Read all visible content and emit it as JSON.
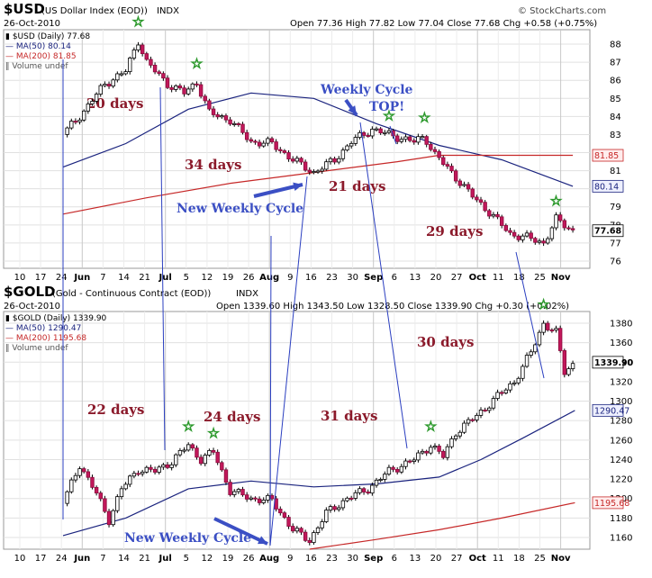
{
  "charts": [
    {
      "id": "usd",
      "symbol": "$USD",
      "name": "(US Dollar Index (EOD))",
      "exchange": "INDX",
      "date": "26-Oct-2010",
      "ohlc": "Open 77.36  High 77.82  Low 77.04  Close 77.68  Chg +0.58 (+0.75%)",
      "chg_label": "Chg",
      "credit": "© StockCharts.com",
      "legend": [
        {
          "text": "$USD (Daily) 77.68",
          "color": "#000000"
        },
        {
          "text": "MA(50) 80.14",
          "color": "#1a237e"
        },
        {
          "text": "MA(200) 81.85",
          "color": "#c62828"
        },
        {
          "text": "Volume undef",
          "color": "#555555"
        }
      ],
      "last_value": "77.68",
      "ma50_value": "80.14",
      "ma200_value": "81.85",
      "annotations": [
        "20 days",
        "34 days",
        "21 days",
        "29 days",
        "New Weekly Cycle",
        "Weekly Cycle",
        "TOP!"
      ]
    },
    {
      "id": "gold",
      "symbol": "$GOLD",
      "name": "(Gold - Continuous Contract (EOD))",
      "exchange": "INDX",
      "date": "26-Oct-2010",
      "ohlc": "Open 1339.60  High 1343.50  Low 1328.50  Close 1339.90  Chg +0.30 (+0.02%)",
      "legend": [
        {
          "text": "$GOLD (Daily) 1339.90",
          "color": "#000000"
        },
        {
          "text": "MA(50) 1290.47",
          "color": "#1a237e"
        },
        {
          "text": "MA(200) 1195.68",
          "color": "#c62828"
        },
        {
          "text": "Volume undef",
          "color": "#555555"
        }
      ],
      "last_value": "1339.90",
      "ma50_value": "1290.47",
      "ma200_value": "1195.68",
      "annotations": [
        "22 days",
        "24 days",
        "31 days",
        "30 days",
        "New Weekly Cycle"
      ]
    }
  ],
  "chart_data": [
    {
      "type": "candlestick",
      "title": "$USD (US Dollar Index (EOD)) INDX",
      "y_ticks": [
        76,
        77,
        78,
        79,
        80,
        81,
        82,
        83,
        84,
        85,
        86,
        87,
        88
      ],
      "ylim": [
        75.6,
        88.8
      ],
      "x_tick_labels": [
        "10",
        "17",
        "24",
        "Jun",
        "7",
        "14",
        "21",
        "Jul",
        "5",
        "12",
        "19",
        "26",
        "Aug",
        "9",
        "16",
        "23",
        "30",
        "Sep",
        "6",
        "13",
        "20",
        "27",
        "Oct",
        "11",
        "18",
        "25",
        "Nov"
      ],
      "x_tick_months": [
        "Jun",
        "Jul",
        "Aug",
        "Sep",
        "Oct",
        "Nov"
      ],
      "grid": true,
      "close_path": [
        {
          "week": 0,
          "value": 83.0
        },
        {
          "week": 1,
          "value": 84.3
        },
        {
          "week": 2,
          "value": 85.8
        },
        {
          "week": 3,
          "value": 86.5
        },
        {
          "week": 3.6,
          "value": 88.2
        },
        {
          "week": 4,
          "value": 87.0
        },
        {
          "week": 5,
          "value": 85.8
        },
        {
          "week": 5.8,
          "value": 85.3
        },
        {
          "week": 6.4,
          "value": 85.9
        },
        {
          "week": 7,
          "value": 84.2
        },
        {
          "week": 8,
          "value": 83.8
        },
        {
          "week": 9,
          "value": 82.6
        },
        {
          "week": 10,
          "value": 82.5
        },
        {
          "week": 11,
          "value": 81.6
        },
        {
          "week": 12,
          "value": 80.9
        },
        {
          "week": 13,
          "value": 81.6
        },
        {
          "week": 13.8,
          "value": 82.6
        },
        {
          "week": 14.8,
          "value": 83.3
        },
        {
          "week": 15.6,
          "value": 83.0
        },
        {
          "week": 16.8,
          "value": 82.6
        },
        {
          "week": 17.3,
          "value": 82.9
        },
        {
          "week": 17.8,
          "value": 81.9
        },
        {
          "week": 18.6,
          "value": 80.9
        },
        {
          "week": 19.5,
          "value": 79.7
        },
        {
          "week": 20.5,
          "value": 78.6
        },
        {
          "week": 21.4,
          "value": 77.5
        },
        {
          "week": 22.2,
          "value": 77.3
        },
        {
          "week": 23,
          "value": 77.0
        },
        {
          "week": 23.6,
          "value": 78.3
        },
        {
          "week": 24.4,
          "value": 77.68
        }
      ],
      "series": [
        {
          "name": "MA(50)",
          "color": "#1a237e",
          "points": [
            {
              "week": 0,
              "value": 81.2
            },
            {
              "week": 3,
              "value": 82.5
            },
            {
              "week": 6,
              "value": 84.4
            },
            {
              "week": 9,
              "value": 85.3
            },
            {
              "week": 12,
              "value": 85.0
            },
            {
              "week": 15,
              "value": 83.6
            },
            {
              "week": 18,
              "value": 82.4
            },
            {
              "week": 21,
              "value": 81.6
            },
            {
              "week": 24.4,
              "value": 80.14
            }
          ]
        },
        {
          "name": "MA(200)",
          "color": "#c62828",
          "points": [
            {
              "week": 0,
              "value": 78.6
            },
            {
              "week": 4,
              "value": 79.5
            },
            {
              "week": 8,
              "value": 80.3
            },
            {
              "week": 12,
              "value": 80.9
            },
            {
              "week": 16,
              "value": 81.5
            },
            {
              "week": 18,
              "value": 81.85
            },
            {
              "week": 24.4,
              "value": 81.85
            }
          ]
        }
      ],
      "cycle_stars": [
        3.6,
        6.4,
        15.6,
        17.3,
        23.6
      ]
    },
    {
      "type": "candlestick",
      "title": "$GOLD (Gold - Continuous Contract (EOD)) INDX",
      "y_ticks": [
        1160,
        1180,
        1200,
        1220,
        1240,
        1260,
        1280,
        1300,
        1320,
        1340,
        1360,
        1380
      ],
      "ylim": [
        1148,
        1392
      ],
      "x_tick_labels": [
        "10",
        "17",
        "24",
        "Jun",
        "7",
        "14",
        "21",
        "Jul",
        "5",
        "12",
        "19",
        "26",
        "Aug",
        "9",
        "16",
        "23",
        "30",
        "Sep",
        "6",
        "13",
        "20",
        "27",
        "Oct",
        "11",
        "18",
        "25",
        "Nov"
      ],
      "x_tick_months": [
        "Jun",
        "Jul",
        "Aug",
        "Sep",
        "Oct",
        "Nov"
      ],
      "grid": true,
      "close_path": [
        {
          "week": 0,
          "value": 1195
        },
        {
          "week": 0.8,
          "value": 1235
        },
        {
          "week": 1.6,
          "value": 1205
        },
        {
          "week": 2.2,
          "value": 1178
        },
        {
          "week": 2.8,
          "value": 1210
        },
        {
          "week": 3.6,
          "value": 1230
        },
        {
          "week": 4.4,
          "value": 1228
        },
        {
          "week": 5.2,
          "value": 1238
        },
        {
          "week": 6.0,
          "value": 1255
        },
        {
          "week": 6.6,
          "value": 1240
        },
        {
          "week": 7.2,
          "value": 1248
        },
        {
          "week": 8.0,
          "value": 1208
        },
        {
          "week": 9.0,
          "value": 1200
        },
        {
          "week": 10.0,
          "value": 1198
        },
        {
          "week": 11.0,
          "value": 1168
        },
        {
          "week": 11.8,
          "value": 1157
        },
        {
          "week": 12.6,
          "value": 1185
        },
        {
          "week": 13.6,
          "value": 1200
        },
        {
          "week": 14.6,
          "value": 1210
        },
        {
          "week": 15.6,
          "value": 1228
        },
        {
          "week": 16.8,
          "value": 1240
        },
        {
          "week": 17.6,
          "value": 1255
        },
        {
          "week": 18.2,
          "value": 1243
        },
        {
          "week": 18.8,
          "value": 1268
        },
        {
          "week": 19.8,
          "value": 1285
        },
        {
          "week": 20.8,
          "value": 1305
        },
        {
          "week": 21.6,
          "value": 1320
        },
        {
          "week": 22.4,
          "value": 1350
        },
        {
          "week": 23.0,
          "value": 1380
        },
        {
          "week": 23.6,
          "value": 1370
        },
        {
          "week": 24.0,
          "value": 1330
        },
        {
          "week": 24.5,
          "value": 1339.9
        }
      ],
      "series": [
        {
          "name": "MA(50)",
          "color": "#1a237e",
          "points": [
            {
              "week": 0,
              "value": 1162
            },
            {
              "week": 3,
              "value": 1180
            },
            {
              "week": 6,
              "value": 1210
            },
            {
              "week": 9,
              "value": 1218
            },
            {
              "week": 12,
              "value": 1212
            },
            {
              "week": 15,
              "value": 1215
            },
            {
              "week": 18,
              "value": 1222
            },
            {
              "week": 20,
              "value": 1240
            },
            {
              "week": 22,
              "value": 1262
            },
            {
              "week": 24.5,
              "value": 1290.47
            }
          ]
        },
        {
          "name": "MA(200)",
          "color": "#c62828",
          "points": [
            {
              "week": 11.8,
              "value": 1148
            },
            {
              "week": 15,
              "value": 1158
            },
            {
              "week": 18,
              "value": 1168
            },
            {
              "week": 21,
              "value": 1180
            },
            {
              "week": 24.5,
              "value": 1195.68
            }
          ]
        }
      ],
      "cycle_stars": [
        6.0,
        7.2,
        17.6,
        23.0
      ]
    }
  ]
}
